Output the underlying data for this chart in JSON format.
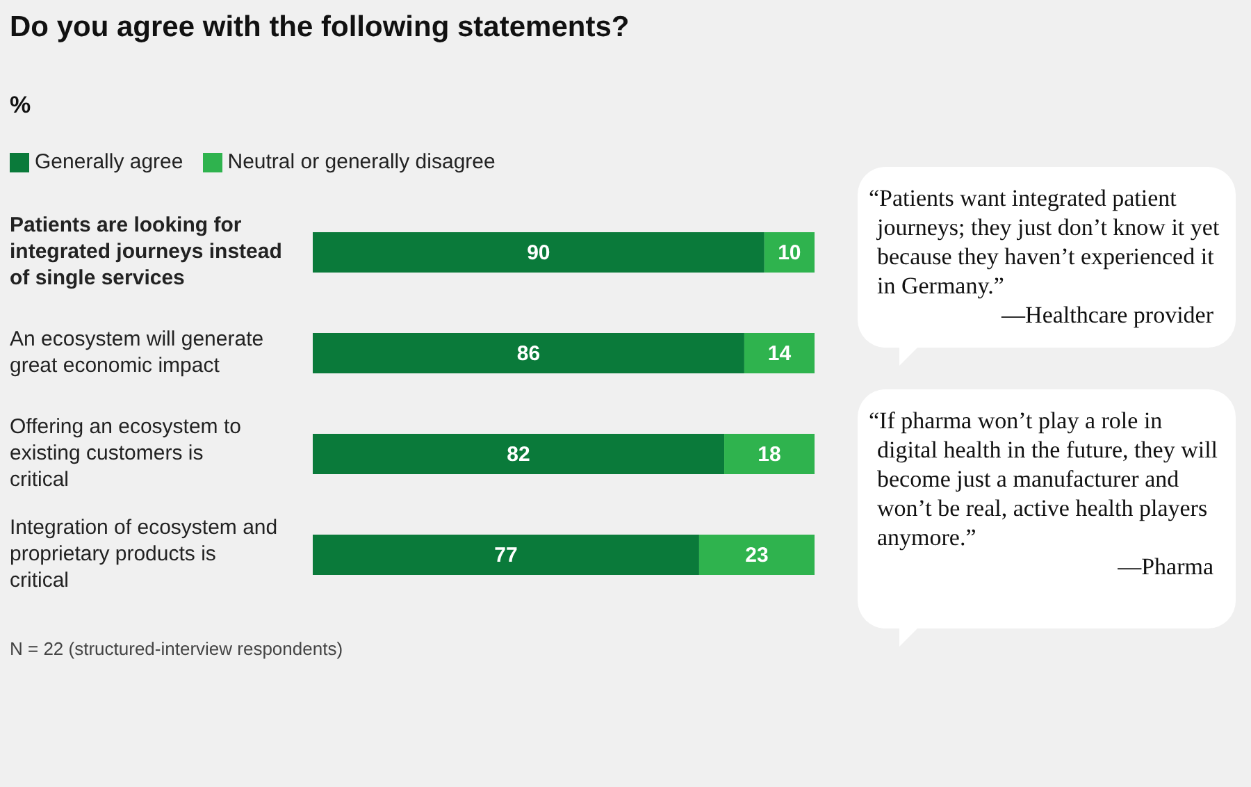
{
  "chart_data": {
    "type": "bar",
    "orientation": "horizontal",
    "stacked": true,
    "title": "Do you agree with the following statements?",
    "subtitle": "%",
    "categories": [
      "Patients are looking for integrated journeys instead of single services",
      "An ecosystem will generate great economic impact",
      "Offering an ecosystem to existing customers is critical",
      "Integration of ecosystem and proprietary products is critical"
    ],
    "series": [
      {
        "name": "Generally agree",
        "color": "#0a7a3a",
        "values": [
          90,
          86,
          82,
          77
        ]
      },
      {
        "name": "Neutral or generally disagree",
        "color": "#2fb34e",
        "values": [
          10,
          14,
          18,
          23
        ]
      }
    ],
    "xlim": [
      0,
      100
    ],
    "tick_labels": "y",
    "data_labels": true,
    "legend": "top left",
    "grid": false,
    "annotations": [
      "“Patients want integrated patient journeys; they just don’t know it yet because they haven’t experienced it in Germany.”",
      "—Healthcare provider",
      "“If pharma won’t play a role in digital health in the future, they will become just a manufacturer and won’t be real, active health players anymore.”",
      "—Pharma",
      "N = 22 (structured-interview respondents)"
    ]
  }
}
